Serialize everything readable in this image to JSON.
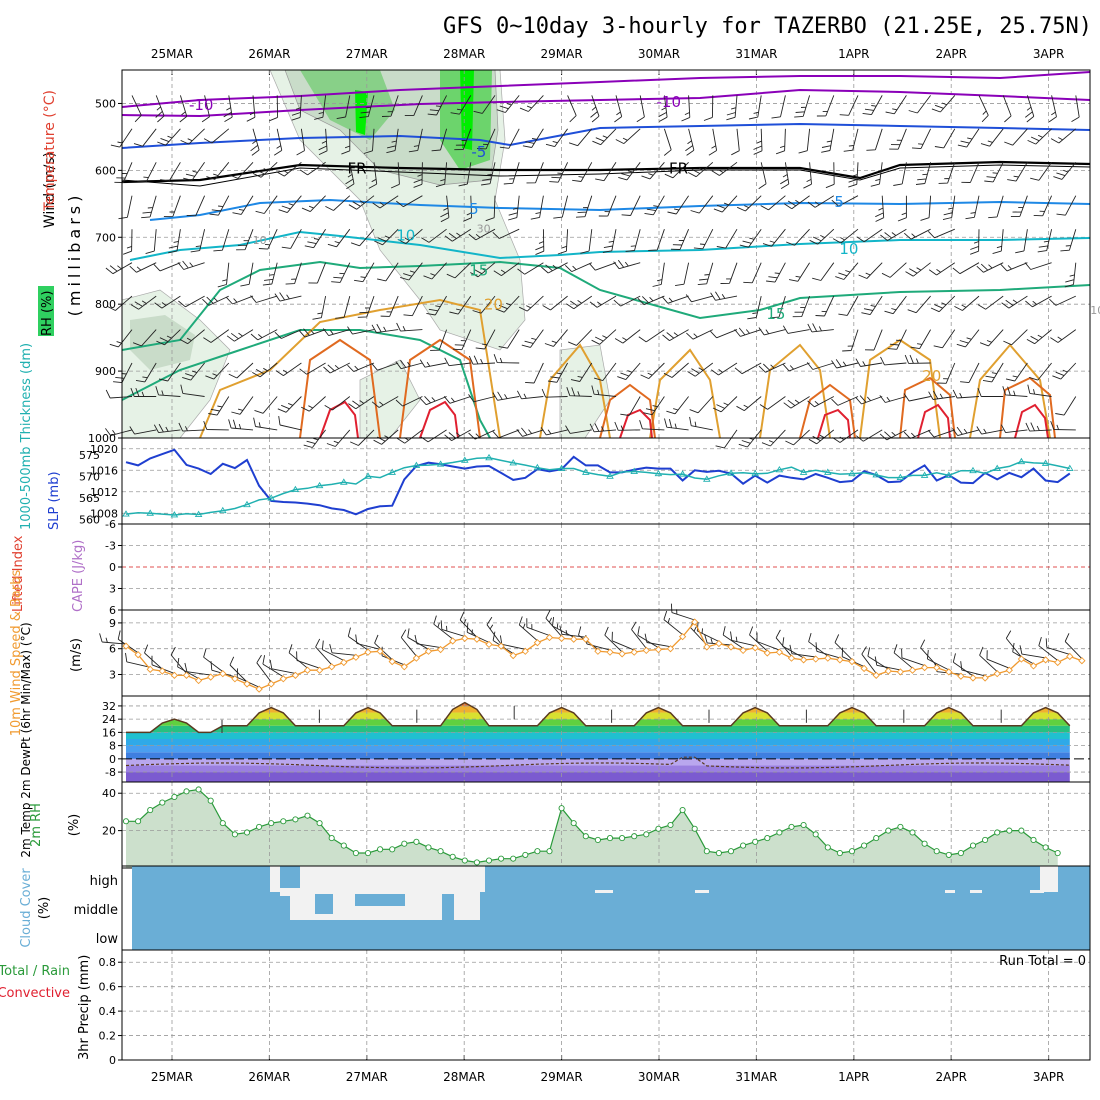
{
  "title": "GFS 0~10day 3-hourly for TAZERBO (21.25E, 25.75N)",
  "x_labels": [
    "25MAR",
    "26MAR",
    "27MAR",
    "28MAR",
    "29MAR",
    "30MAR",
    "31MAR",
    "1APR",
    "2APR",
    "3APR"
  ],
  "colors": {
    "temp_minus10": "#8a00b8",
    "temp_minus5": "#1f4fd8",
    "temp_5": "#1e88e5",
    "temp_10": "#12b5c8",
    "temp_15": "#1faa7a",
    "temp_20": "#e0a030",
    "temp_25": "#e06a20",
    "temp_30": "#e02030",
    "slp": "#1f3fd0",
    "thickness": "#20b0b0",
    "wind10m": "#f09a30",
    "rh2m": "#2a9a3a",
    "cloud": "#6aaed6",
    "cloud_obscured": "#f2f2f2"
  },
  "chart_data": [
    {
      "type": "contour",
      "name": "upper-air",
      "ylabel_wind": "Wind (m/s)",
      "ylabel_temp": "Temperature (°C)",
      "ylabel_rh": "RH (%)",
      "ylabel_units": "(millibars)",
      "yticks": [
        "500",
        "600",
        "700",
        "800",
        "900",
        "1000"
      ],
      "ylim": [
        1000,
        450
      ],
      "contour_labels": [
        {
          "text": "-10",
          "x": 0.3,
          "p": 510,
          "c": "temp_minus10"
        },
        {
          "text": "-10",
          "x": 5.1,
          "p": 505,
          "c": "temp_minus10"
        },
        {
          "text": "-5",
          "x": 3.15,
          "p": 580,
          "c": "temp_minus5"
        },
        {
          "text": "FR",
          "x": 1.9,
          "p": 605,
          "c": "black"
        },
        {
          "text": "FR",
          "x": 5.2,
          "p": 605,
          "c": "black"
        },
        {
          "text": "5",
          "x": 3.1,
          "p": 665,
          "c": "temp_5"
        },
        {
          "text": "5",
          "x": 6.85,
          "p": 655,
          "c": "temp_5"
        },
        {
          "text": "10",
          "x": 2.4,
          "p": 705,
          "c": "temp_10"
        },
        {
          "text": "10",
          "x": 6.95,
          "p": 725,
          "c": "temp_10"
        },
        {
          "text": "15",
          "x": 3.15,
          "p": 757,
          "c": "temp_15"
        },
        {
          "text": "15",
          "x": 6.2,
          "p": 822,
          "c": "temp_15"
        },
        {
          "text": "20",
          "x": 3.3,
          "p": 808,
          "c": "temp_20"
        },
        {
          "text": "20",
          "x": 7.8,
          "p": 915,
          "c": "temp_20"
        },
        {
          "text": "10",
          "x": 0.9,
          "p": 710,
          "c": "gray"
        },
        {
          "text": "30",
          "x": 3.2,
          "p": 693,
          "c": "gray"
        },
        {
          "text": "10",
          "x": 9.5,
          "p": 815,
          "c": "gray"
        }
      ]
    },
    {
      "type": "line",
      "name": "slp-thickness",
      "ylabel_thickness": "1000-500mb Thickness (dm)",
      "ylabel_slp": "SLP (mb)",
      "yticks_left": [
        "575",
        "570",
        "565",
        "560"
      ],
      "yticks_right": [
        "1020",
        "1016",
        "1012",
        "1008"
      ],
      "series": [
        {
          "name": "SLP",
          "unit": "mb",
          "values": [
            1017.5,
            1016.9,
            1018.2,
            1019,
            1019.8,
            1017,
            1016.3,
            1015.3,
            1017.2,
            1016.4,
            1017.9,
            1013.1,
            1010.3,
            1010.1,
            1010,
            1009.8,
            1009.5,
            1008.9,
            1008.6,
            1007.8,
            1008.8,
            1009.3,
            1009.4,
            1014.3,
            1016.8,
            1017.4,
            1017.1,
            1016.7,
            1016.3,
            1016.7,
            1016.8,
            1015.5,
            1014.2,
            1014.6,
            1016.2,
            1015.8,
            1016.2,
            1018.5,
            1016.9,
            1016.9,
            1015.6,
            1015.6,
            1016.1,
            1016.5,
            1016.3,
            1016.3,
            1014.1,
            1016,
            1015.7,
            1015.9,
            1015.4,
            1013.5,
            1015,
            1013.7,
            1015,
            1014.6,
            1014.3,
            1015.3,
            1014.6,
            1013.8,
            1014,
            1015.8,
            1015.1,
            1013.8,
            1013.9,
            1015.6,
            1016.9,
            1014.1,
            1015.1,
            1013.7,
            1013.6,
            1015.5,
            1014.3,
            1015.5,
            1014.7,
            1016.3,
            1014.1,
            1013.8,
            1015.4
          ]
        },
        {
          "name": "Thickness",
          "unit": "dm",
          "values": [
            561.3,
            561.6,
            561.5,
            561.3,
            561.1,
            561.4,
            561.2,
            561.7,
            562.1,
            562.6,
            563.5,
            564.6,
            565,
            566.1,
            567,
            567.3,
            567.9,
            568.2,
            568.7,
            568.3,
            570.1,
            569.8,
            571,
            572.1,
            572.6,
            572.7,
            572.9,
            573.3,
            573.8,
            574.3,
            574.4,
            573.8,
            573.2,
            572.7,
            572.1,
            571.6,
            571.9,
            571.9,
            571,
            570.5,
            570.1,
            571.1,
            571.2,
            571,
            570.7,
            570.5,
            570.6,
            569.7,
            569.4,
            570.2,
            570.8,
            570.9,
            570.7,
            570.8,
            571.6,
            572.2,
            571,
            571.5,
            571,
            570.6,
            570.7,
            570.9,
            570.4,
            569.8,
            569.8,
            570.3,
            570.3,
            570.9,
            570.3,
            571.4,
            571.4,
            570.8,
            571.9,
            572.4,
            573.5,
            573.2,
            573.1,
            572.5,
            571.9
          ]
        }
      ]
    },
    {
      "type": "line",
      "name": "cape-li",
      "ylabel_li": "Lifted Index",
      "ylabel_cape": "CAPE (J/kg)",
      "yticks": [
        "-6",
        "-3",
        "0",
        "3",
        "6"
      ],
      "ylim": [
        -6,
        6
      ]
    },
    {
      "type": "line",
      "name": "wind10m",
      "ylabel": "10m Wind Speed & Barbs",
      "unit": "(m/s)",
      "yticks": [
        "9",
        "6",
        "3"
      ],
      "ylim": [
        0.5,
        10.5
      ],
      "values": [
        6.3,
        5.3,
        3.6,
        3.4,
        2.9,
        2.9,
        2.3,
        2.7,
        3.1,
        2.5,
        1.9,
        1.3,
        1.9,
        2.5,
        2.9,
        3.5,
        3.5,
        3.9,
        4.4,
        5,
        5.6,
        5.7,
        4.5,
        3.9,
        4.9,
        5.7,
        5.9,
        6.9,
        7.2,
        7.1,
        6.5,
        6.3,
        5.2,
        5.7,
        6.7,
        7.3,
        7.2,
        7.1,
        7.1,
        5.7,
        5.6,
        5.4,
        5.6,
        5.8,
        5.9,
        6,
        7.4,
        9.1,
        6.2,
        6.6,
        6.2,
        5.8,
        6.1,
        5.5,
        5.6,
        4.9,
        4.7,
        4.8,
        4.9,
        4.7,
        4.5,
        3.7,
        2.9,
        3.4,
        3.3,
        3.5,
        3.8,
        3.8,
        3.3,
        2.8,
        2.6,
        2.6,
        3.1,
        3.5,
        4.8,
        4,
        4.7,
        4.4,
        5.1,
        4.6
      ]
    },
    {
      "type": "area",
      "name": "temp-dewpoint",
      "ylabel": "2m Temp 2m DewPt (6hr Min/Max) (°C)",
      "yticks": [
        "32",
        "24",
        "16",
        "8",
        "0",
        "-8"
      ],
      "ylim": [
        -14,
        38
      ]
    },
    {
      "type": "area",
      "name": "rh2m",
      "ylabel": "2m RH",
      "unit": "(%)",
      "yticks": [
        "40",
        "20"
      ],
      "ylim": [
        0,
        46
      ],
      "values": [
        25,
        25,
        31,
        35,
        38,
        41,
        42,
        36,
        24,
        18,
        19,
        22,
        24,
        25,
        26,
        28,
        24,
        16,
        12,
        8,
        8,
        10,
        10,
        13,
        14,
        11,
        9,
        6,
        4,
        3,
        4,
        5,
        5,
        7,
        9,
        9,
        32,
        24,
        17,
        15,
        16,
        16,
        17,
        18,
        21,
        23,
        31,
        21,
        9,
        8,
        9,
        12,
        14,
        16,
        19,
        22,
        23,
        18,
        11,
        8,
        9,
        12,
        16,
        20,
        22,
        19,
        13,
        9,
        7,
        8,
        12,
        15,
        19,
        20,
        20,
        15,
        11,
        8
      ]
    },
    {
      "type": "heatmap",
      "name": "cloud-cover",
      "ylabel": "Cloud Cover",
      "unit": "(%)",
      "levels": [
        "high",
        "middle",
        "low"
      ]
    },
    {
      "type": "bar",
      "name": "precip",
      "ylabel": "3hr Precip (mm)",
      "legend_total": "Total / Rain",
      "legend_convective": "Convective",
      "yticks": [
        "0.8",
        "0.6",
        "0.4",
        "0.2",
        "0"
      ],
      "ylim": [
        0,
        0.9
      ],
      "run_total": "Run Total = 0"
    }
  ]
}
